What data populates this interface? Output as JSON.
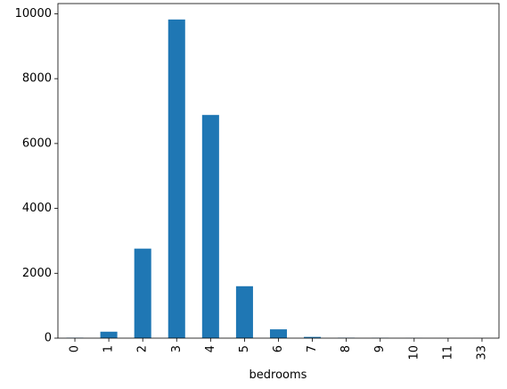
{
  "chart_data": {
    "type": "bar",
    "categories": [
      "0",
      "1",
      "2",
      "3",
      "4",
      "5",
      "6",
      "7",
      "8",
      "9",
      "10",
      "11",
      "33"
    ],
    "values": [
      13,
      199,
      2760,
      9824,
      6882,
      1601,
      272,
      38,
      13,
      6,
      3,
      1,
      1
    ],
    "xlabel": "bedrooms",
    "ylabel": "",
    "ylim": [
      0,
      10315
    ],
    "yticks": [
      0,
      2000,
      4000,
      6000,
      8000,
      10000
    ],
    "ytick_labels": [
      "0",
      "2000",
      "4000",
      "6000",
      "8000",
      "10000"
    ],
    "bar_color": "#1f77b4",
    "grid": false,
    "legend": "none"
  }
}
